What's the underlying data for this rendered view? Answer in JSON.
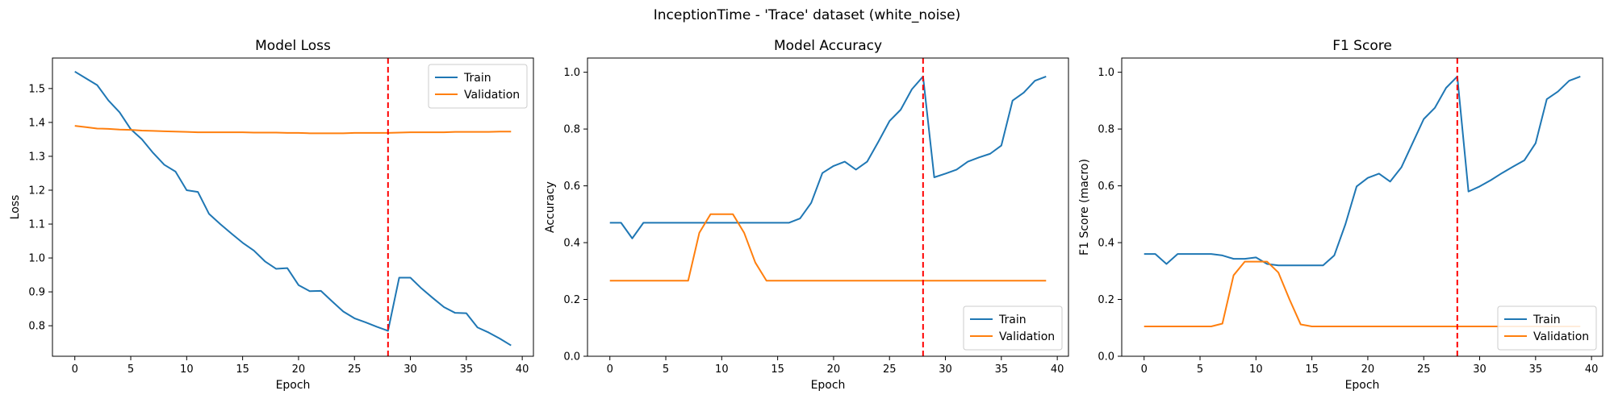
{
  "figure": {
    "suptitle": "InceptionTime - 'Trace' dataset (white_noise)"
  },
  "chart_data": [
    {
      "type": "line",
      "title": "Model Loss",
      "xlabel": "Epoch",
      "ylabel": "Loss",
      "xlim": [
        -2,
        41
      ],
      "ylim": [
        0.71,
        1.59
      ],
      "xticks": [
        0,
        5,
        10,
        15,
        20,
        25,
        30,
        35,
        40
      ],
      "yticks": [
        0.8,
        0.9,
        1.0,
        1.1,
        1.2,
        1.3,
        1.4,
        1.5
      ],
      "ytick_labels": [
        "0.8",
        "0.9",
        "1.0",
        "1.1",
        "1.2",
        "1.3",
        "1.4",
        "1.5"
      ],
      "vline": {
        "x": 28,
        "color": "#ff0000",
        "style": "dashed"
      },
      "legend": {
        "position": "top-right"
      },
      "series": [
        {
          "name": "Train",
          "color": "#1f77b4",
          "x": [
            0,
            1,
            2,
            3,
            4,
            5,
            6,
            7,
            8,
            9,
            10,
            11,
            12,
            13,
            14,
            15,
            16,
            17,
            18,
            19,
            20,
            21,
            22,
            23,
            24,
            25,
            26,
            27,
            28,
            29,
            30,
            31,
            32,
            33,
            34,
            35,
            36,
            37,
            38,
            39
          ],
          "values": [
            1.55,
            1.53,
            1.51,
            1.465,
            1.43,
            1.38,
            1.35,
            1.31,
            1.275,
            1.255,
            1.2,
            1.195,
            1.13,
            1.1,
            1.072,
            1.045,
            1.022,
            0.99,
            0.968,
            0.97,
            0.92,
            0.902,
            0.903,
            0.872,
            0.842,
            0.822,
            0.81,
            0.797,
            0.785,
            0.942,
            0.942,
            0.91,
            0.882,
            0.855,
            0.838,
            0.837,
            0.795,
            0.78,
            0.762,
            0.742
          ]
        },
        {
          "name": "Validation",
          "color": "#ff7f0e",
          "x": [
            0,
            1,
            2,
            3,
            4,
            5,
            6,
            7,
            8,
            9,
            10,
            11,
            12,
            13,
            14,
            15,
            16,
            17,
            18,
            19,
            20,
            21,
            22,
            23,
            24,
            25,
            26,
            27,
            28,
            29,
            30,
            31,
            32,
            33,
            34,
            35,
            36,
            37,
            38,
            39
          ],
          "values": [
            1.39,
            1.386,
            1.382,
            1.381,
            1.379,
            1.378,
            1.376,
            1.375,
            1.374,
            1.373,
            1.372,
            1.371,
            1.371,
            1.371,
            1.371,
            1.371,
            1.37,
            1.37,
            1.37,
            1.369,
            1.369,
            1.368,
            1.368,
            1.368,
            1.368,
            1.369,
            1.369,
            1.369,
            1.369,
            1.37,
            1.371,
            1.371,
            1.371,
            1.371,
            1.372,
            1.372,
            1.372,
            1.372,
            1.373,
            1.373
          ]
        }
      ]
    },
    {
      "type": "line",
      "title": "Model Accuracy",
      "xlabel": "Epoch",
      "ylabel": "Accuracy",
      "xlim": [
        -2,
        41
      ],
      "ylim": [
        0,
        1.05
      ],
      "xticks": [
        0,
        5,
        10,
        15,
        20,
        25,
        30,
        35,
        40
      ],
      "yticks": [
        0,
        0.2,
        0.4,
        0.6,
        0.8,
        1.0
      ],
      "ytick_labels": [
        "0.0",
        "0.2",
        "0.4",
        "0.6",
        "0.8",
        "1.0"
      ],
      "vline": {
        "x": 28,
        "color": "#ff0000",
        "style": "dashed"
      },
      "legend": {
        "position": "bottom-right"
      },
      "series": [
        {
          "name": "Train",
          "color": "#1f77b4",
          "x": [
            0,
            1,
            2,
            3,
            4,
            5,
            6,
            7,
            8,
            9,
            10,
            11,
            12,
            13,
            14,
            15,
            16,
            17,
            18,
            19,
            20,
            21,
            22,
            23,
            24,
            25,
            26,
            27,
            28,
            29,
            30,
            31,
            32,
            33,
            34,
            35,
            36,
            37,
            38,
            39
          ],
          "values": [
            0.47,
            0.47,
            0.415,
            0.47,
            0.47,
            0.47,
            0.47,
            0.47,
            0.47,
            0.47,
            0.47,
            0.47,
            0.47,
            0.47,
            0.47,
            0.47,
            0.47,
            0.485,
            0.54,
            0.645,
            0.67,
            0.685,
            0.657,
            0.685,
            0.755,
            0.828,
            0.868,
            0.94,
            0.985,
            0.63,
            0.643,
            0.657,
            0.685,
            0.7,
            0.713,
            0.742,
            0.9,
            0.928,
            0.97,
            0.985
          ]
        },
        {
          "name": "Validation",
          "color": "#ff7f0e",
          "x": [
            0,
            1,
            2,
            3,
            4,
            5,
            6,
            7,
            8,
            9,
            10,
            11,
            12,
            13,
            14,
            15,
            16,
            17,
            18,
            19,
            20,
            21,
            22,
            23,
            24,
            25,
            26,
            27,
            28,
            29,
            30,
            31,
            32,
            33,
            34,
            35,
            36,
            37,
            38,
            39
          ],
          "values": [
            0.266,
            0.266,
            0.266,
            0.266,
            0.266,
            0.266,
            0.266,
            0.266,
            0.435,
            0.5,
            0.5,
            0.5,
            0.435,
            0.33,
            0.266,
            0.266,
            0.266,
            0.266,
            0.266,
            0.266,
            0.266,
            0.266,
            0.266,
            0.266,
            0.266,
            0.266,
            0.266,
            0.266,
            0.266,
            0.266,
            0.266,
            0.266,
            0.266,
            0.266,
            0.266,
            0.266,
            0.266,
            0.266,
            0.266,
            0.266
          ]
        }
      ]
    },
    {
      "type": "line",
      "title": "F1 Score",
      "xlabel": "Epoch",
      "ylabel": "F1 Score (macro)",
      "xlim": [
        -2,
        41
      ],
      "ylim": [
        0,
        1.05
      ],
      "xticks": [
        0,
        5,
        10,
        15,
        20,
        25,
        30,
        35,
        40
      ],
      "yticks": [
        0,
        0.2,
        0.4,
        0.6,
        0.8,
        1.0
      ],
      "ytick_labels": [
        "0.0",
        "0.2",
        "0.4",
        "0.6",
        "0.8",
        "1.0"
      ],
      "vline": {
        "x": 28,
        "color": "#ff0000",
        "style": "dashed"
      },
      "legend": {
        "position": "bottom-right"
      },
      "series": [
        {
          "name": "Train",
          "color": "#1f77b4",
          "x": [
            0,
            1,
            2,
            3,
            4,
            5,
            6,
            7,
            8,
            9,
            10,
            11,
            12,
            13,
            14,
            15,
            16,
            17,
            18,
            19,
            20,
            21,
            22,
            23,
            24,
            25,
            26,
            27,
            28,
            29,
            30,
            31,
            32,
            33,
            34,
            35,
            36,
            37,
            38,
            39
          ],
          "values": [
            0.36,
            0.36,
            0.325,
            0.36,
            0.36,
            0.36,
            0.36,
            0.355,
            0.343,
            0.343,
            0.348,
            0.325,
            0.32,
            0.32,
            0.32,
            0.32,
            0.32,
            0.355,
            0.465,
            0.598,
            0.628,
            0.643,
            0.615,
            0.665,
            0.75,
            0.835,
            0.875,
            0.945,
            0.985,
            0.58,
            0.598,
            0.62,
            0.645,
            0.668,
            0.69,
            0.75,
            0.905,
            0.932,
            0.97,
            0.985
          ]
        },
        {
          "name": "Validation",
          "color": "#ff7f0e",
          "x": [
            0,
            1,
            2,
            3,
            4,
            5,
            6,
            7,
            8,
            9,
            10,
            11,
            12,
            13,
            14,
            15,
            16,
            17,
            18,
            19,
            20,
            21,
            22,
            23,
            24,
            25,
            26,
            27,
            28,
            29,
            30,
            31,
            32,
            33,
            34,
            35,
            36,
            37,
            38,
            39
          ],
          "values": [
            0.105,
            0.105,
            0.105,
            0.105,
            0.105,
            0.105,
            0.105,
            0.115,
            0.285,
            0.333,
            0.333,
            0.333,
            0.295,
            0.2,
            0.112,
            0.105,
            0.105,
            0.105,
            0.105,
            0.105,
            0.105,
            0.105,
            0.105,
            0.105,
            0.105,
            0.105,
            0.105,
            0.105,
            0.105,
            0.105,
            0.105,
            0.105,
            0.105,
            0.105,
            0.105,
            0.105,
            0.105,
            0.105,
            0.105,
            0.105
          ]
        }
      ]
    }
  ]
}
